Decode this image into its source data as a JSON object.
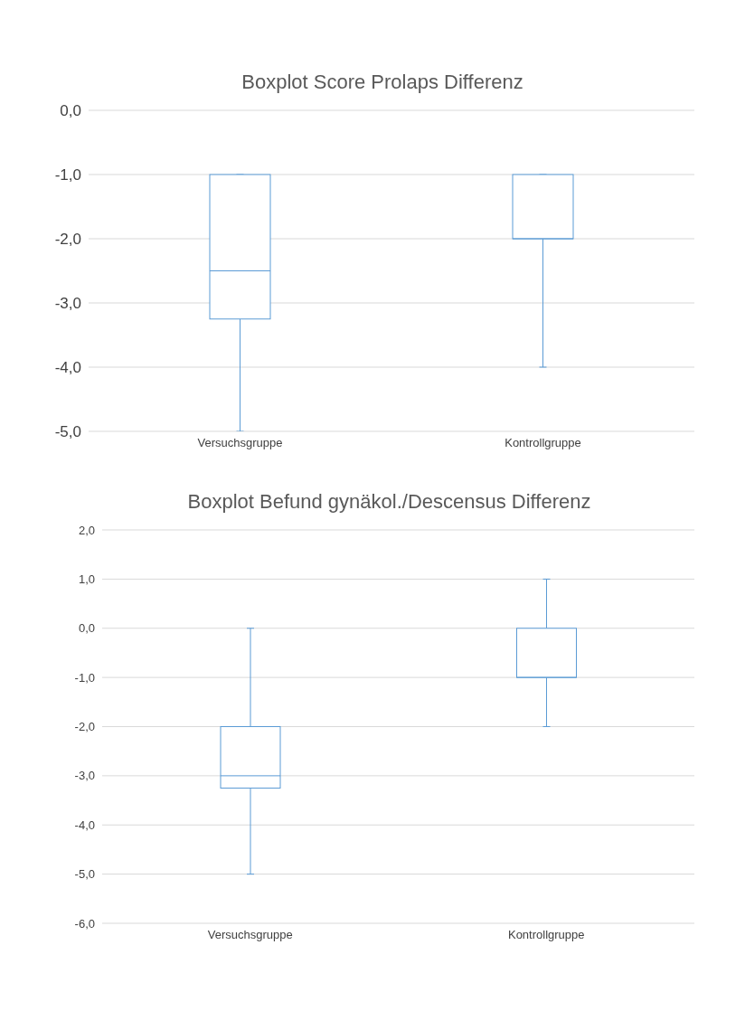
{
  "chart_data": [
    {
      "type": "box",
      "title": "Boxplot Score Prolaps Differenz",
      "categories": [
        "Versuchsgruppe",
        "Kontrollgruppe"
      ],
      "color": "#5b9bd5",
      "grid": "y",
      "legend": false,
      "boxes": [
        {
          "low": -5,
          "q1": -3.25,
          "median": -2.5,
          "q3": -1,
          "high": -1
        },
        {
          "low": -4,
          "q1": -2,
          "median": -2,
          "q3": -1,
          "high": -1
        }
      ],
      "ylim": [
        -5,
        0
      ],
      "yticks": [
        {
          "value": -5,
          "label": "-5,0"
        },
        {
          "value": -4,
          "label": "-4,0"
        },
        {
          "value": -3,
          "label": "-3,0"
        },
        {
          "value": -2,
          "label": "-2,0"
        },
        {
          "value": -1,
          "label": "-1,0"
        },
        {
          "value": 0,
          "label": "0,0"
        }
      ]
    },
    {
      "type": "box",
      "title": "Boxplot Befund gynäkol./Descensus Differenz",
      "categories": [
        "Versuchsgruppe",
        "Kontrollgruppe"
      ],
      "color": "#5b9bd5",
      "grid": "y",
      "legend": false,
      "boxes": [
        {
          "low": -5,
          "q1": -3.25,
          "median": -3,
          "q3": -2,
          "high": 0
        },
        {
          "low": -2,
          "q1": -1,
          "median": -1,
          "q3": 0,
          "high": 1
        }
      ],
      "ylim": [
        -6,
        2
      ],
      "yticks": [
        {
          "value": -6,
          "label": "-6,0"
        },
        {
          "value": -5,
          "label": "-5,0"
        },
        {
          "value": -4,
          "label": "-4,0"
        },
        {
          "value": -3,
          "label": "-3,0"
        },
        {
          "value": -2,
          "label": "-2,0"
        },
        {
          "value": -1,
          "label": "-1,0"
        },
        {
          "value": 0,
          "label": "0,0"
        },
        {
          "value": 1,
          "label": "1,0"
        },
        {
          "value": 2,
          "label": "2,0"
        }
      ]
    }
  ]
}
